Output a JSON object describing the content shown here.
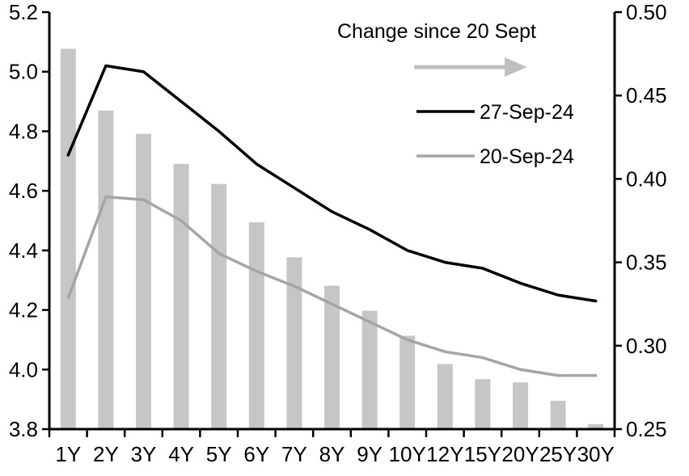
{
  "chart_data": {
    "type": "bar",
    "subtype": "bar-line-combo",
    "categories": [
      "1Y",
      "2Y",
      "3Y",
      "4Y",
      "5Y",
      "6Y",
      "7Y",
      "8Y",
      "9Y",
      "10Y",
      "12Y",
      "15Y",
      "20Y",
      "25Y",
      "30Y"
    ],
    "series": [
      {
        "name": "Change since 20 Sept",
        "type": "bar",
        "axis": "right",
        "color": "#c6c6c6",
        "values": [
          0.478,
          0.441,
          0.427,
          0.409,
          0.397,
          0.374,
          0.353,
          0.336,
          0.321,
          0.306,
          0.289,
          0.28,
          0.278,
          0.267,
          0.253
        ]
      },
      {
        "name": "27-Sep-24",
        "type": "line",
        "axis": "left",
        "color": "#000000",
        "values": [
          4.72,
          5.02,
          5.0,
          4.9,
          4.8,
          4.69,
          4.61,
          4.53,
          4.47,
          4.4,
          4.36,
          4.34,
          4.29,
          4.25,
          4.23
        ]
      },
      {
        "name": "20-Sep-24",
        "type": "line",
        "axis": "left",
        "color": "#a5a5a5",
        "values": [
          4.24,
          4.58,
          4.57,
          4.5,
          4.39,
          4.33,
          4.28,
          4.22,
          4.16,
          4.1,
          4.06,
          4.04,
          4.0,
          3.98,
          3.98
        ]
      }
    ],
    "left_axis": {
      "min": 3.8,
      "max": 5.2,
      "ticks": [
        "5.2",
        "5.0",
        "4.8",
        "4.6",
        "4.4",
        "4.2",
        "4.0",
        "3.8"
      ]
    },
    "right_axis": {
      "min": 0.25,
      "max": 0.5,
      "ticks": [
        "0.50",
        "0.45",
        "0.40",
        "0.35",
        "0.30",
        "0.25"
      ]
    },
    "legend_position": "top-center-inside",
    "grid": false,
    "arrow_color": "#bfbfbf",
    "axis_color": "#000000"
  }
}
